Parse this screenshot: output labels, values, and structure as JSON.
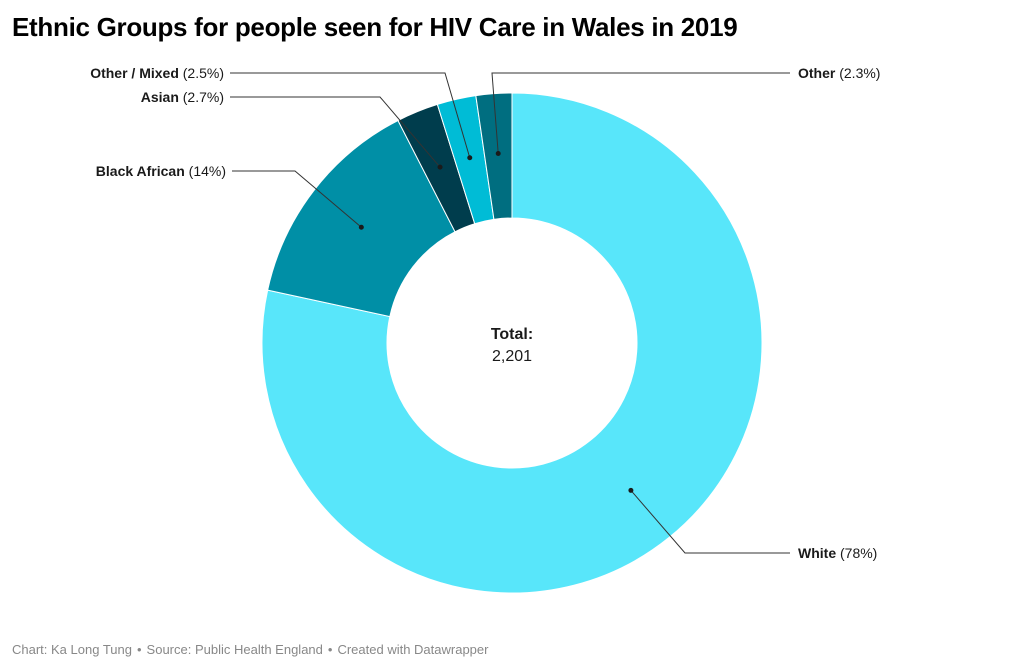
{
  "title": "Ethnic Groups for people seen for HIV Care in Wales in 2019",
  "center_label": {
    "title": "Total:",
    "value": "2,201"
  },
  "footer": {
    "chart_credit": "Chart: Ka Long Tung",
    "separator": "•",
    "source": "Source: Public Health England",
    "tool": "Created with Datawrapper"
  },
  "chart_data": {
    "type": "pie",
    "subtype": "donut",
    "title": "Ethnic Groups for people seen for HIV Care in Wales in 2019",
    "total": 2201,
    "slices": [
      {
        "label": "White",
        "value": 78,
        "display": "78%",
        "color": "#58e6fa"
      },
      {
        "label": "Black African",
        "value": 14,
        "display": "14%",
        "color": "#008fa6"
      },
      {
        "label": "Asian",
        "value": 2.7,
        "display": "2.7%",
        "color": "#003d4d"
      },
      {
        "label": "Other / Mixed",
        "value": 2.5,
        "display": "2.5%",
        "color": "#00bcd6"
      },
      {
        "label": "Other",
        "value": 2.3,
        "display": "2.3%",
        "color": "#006e80"
      }
    ]
  }
}
